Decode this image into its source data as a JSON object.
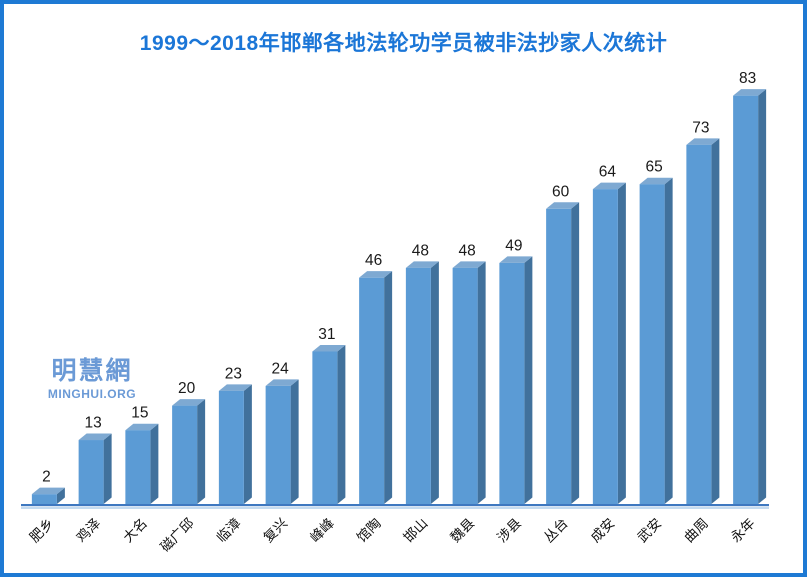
{
  "chart_data": {
    "type": "bar",
    "title": "1999～2018年邯郸各地法轮功学员被非法抄家人次统计",
    "categories": [
      "肥乡",
      "鸡泽",
      "大名",
      "磁广邱",
      "临漳",
      "复兴",
      "峰峰",
      "馆陶",
      "邯山",
      "魏县",
      "涉县",
      "丛台",
      "成安",
      "武安",
      "曲周",
      "永年"
    ],
    "values": [
      2,
      13,
      15,
      20,
      23,
      24,
      31,
      46,
      48,
      48,
      49,
      60,
      64,
      65,
      73,
      83
    ],
    "xlabel": "",
    "ylabel": "",
    "ylim": [
      0,
      85
    ],
    "grid": false,
    "legend": false,
    "bar_style": "3d",
    "data_labels": true,
    "category_label_rotation": -45
  },
  "watermark": {
    "cn": "明慧網",
    "en": "MINGHUI.ORG"
  },
  "colors": {
    "frame_border": "#1e7ad4",
    "title": "#1b76d7",
    "bar_front": "#5b9bd5",
    "bar_side": "#41719c",
    "bar_top": "#7ea9d2",
    "axis_line": "#3e78c0",
    "axis_line_light": "#9dc3e6",
    "value_label": "#1a1a1a",
    "category_label": "#111111",
    "watermark": "#6b9ad6",
    "background": "#ffffff"
  }
}
